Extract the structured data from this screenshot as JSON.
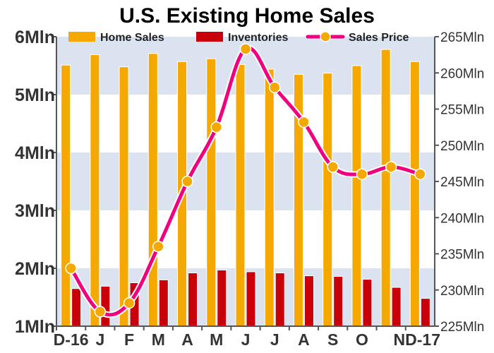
{
  "chart_data": {
    "type": "bar",
    "title": "U.S. Existing Home Sales",
    "categories": [
      "D-16",
      "J",
      "F",
      "M",
      "A",
      "M",
      "J",
      "J",
      "A",
      "S",
      "O",
      "N",
      "D-17"
    ],
    "x_tick_labels": [
      "D-16",
      "J",
      "F",
      "M",
      "A",
      "M",
      "J",
      "J",
      "A",
      "S",
      "O",
      "ND-17"
    ],
    "left_axis": {
      "ylim": [
        1,
        6
      ],
      "ticks": [
        {
          "value": 1,
          "label": "1Mln"
        },
        {
          "value": 2,
          "label": "2Mln"
        },
        {
          "value": 3,
          "label": "3Mln"
        },
        {
          "value": 4,
          "label": "4Mln"
        },
        {
          "value": 5,
          "label": "5Mln"
        },
        {
          "value": 6,
          "label": "6Mln"
        }
      ]
    },
    "right_axis": {
      "ylim": [
        225,
        265
      ],
      "ticks": [
        {
          "value": 225,
          "label": "225Mln"
        },
        {
          "value": 230,
          "label": "230Mln"
        },
        {
          "value": 235,
          "label": "235Mln"
        },
        {
          "value": 240,
          "label": "240Mln"
        },
        {
          "value": 245,
          "label": "245Mln"
        },
        {
          "value": 250,
          "label": "250Mln"
        },
        {
          "value": 255,
          "label": "255Mln"
        },
        {
          "value": 260,
          "label": "260Mln"
        },
        {
          "value": 265,
          "label": "265Mln"
        }
      ]
    },
    "series": [
      {
        "name": "Home Sales",
        "type": "bar",
        "axis": "left",
        "color": "#f5a900",
        "values": [
          5.51,
          5.69,
          5.48,
          5.71,
          5.57,
          5.62,
          5.52,
          5.44,
          5.35,
          5.37,
          5.5,
          5.78,
          5.57
        ]
      },
      {
        "name": "Inventories",
        "type": "bar",
        "axis": "left",
        "color": "#c8000a",
        "values": [
          1.65,
          1.69,
          1.75,
          1.8,
          1.92,
          1.97,
          1.94,
          1.92,
          1.87,
          1.86,
          1.81,
          1.67,
          1.48
        ]
      },
      {
        "name": "Sales Price",
        "type": "line",
        "axis": "right",
        "color": "#f0007f",
        "marker_color": "#f5a900",
        "values": [
          233.0,
          227.0,
          228.2,
          236.0,
          245.0,
          252.5,
          263.3,
          258.0,
          253.2,
          247.0,
          246.0,
          247.0,
          246.0
        ]
      }
    ],
    "legend": {
      "position": "top",
      "entries": [
        "Home Sales",
        "Inventories",
        "Sales Price"
      ]
    },
    "background_bands": {
      "color": "#dae3ef",
      "left_axis_ranges": [
        [
          1,
          2
        ],
        [
          3,
          4
        ],
        [
          5,
          6
        ]
      ]
    }
  }
}
